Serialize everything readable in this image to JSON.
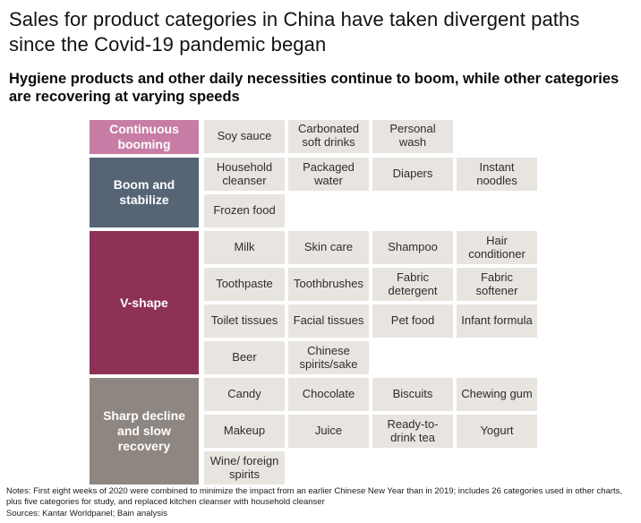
{
  "title": "Sales for product categories in China have taken divergent paths since the Covid-19 pandemic began",
  "subtitle": "Hygiene products and other daily necessities continue to boom, while other categories are recovering at varying speeds",
  "chart_data": {
    "type": "table",
    "title": "Sales for product categories in China have taken divergent paths since the Covid-19 pandemic began",
    "subtitle": "Hygiene products and other daily necessities continue to boom, while other categories are recovering at varying speeds",
    "columns_per_row": 4,
    "groups": [
      {
        "slug": "continuous-booming",
        "label": "Continuous booming",
        "color": "#c77da5",
        "items": [
          "Soy sauce",
          "Carbonated soft drinks",
          "Personal wash"
        ]
      },
      {
        "slug": "boom-and-stabilize",
        "label": "Boom and stabilize",
        "color": "#566476",
        "items": [
          "Household cleanser",
          "Packaged water",
          "Diapers",
          "Instant noodles",
          "Frozen food"
        ]
      },
      {
        "slug": "v-shape",
        "label": "V-shape",
        "color": "#8e3157",
        "items": [
          "Milk",
          "Skin care",
          "Shampoo",
          "Hair conditioner",
          "Toothpaste",
          "Toothbrushes",
          "Fabric detergent",
          "Fabric softener",
          "Toilet tissues",
          "Facial tissues",
          "Pet food",
          "Infant formula",
          "Beer",
          "Chinese spirits/sake"
        ]
      },
      {
        "slug": "sharp-decline-and-slow-recovery",
        "label": "Sharp decline and slow recovery",
        "color": "#8e8680",
        "items": [
          "Candy",
          "Chocolate",
          "Biscuits",
          "Chewing gum",
          "Makeup",
          "Juice",
          "Ready-to-drink tea",
          "Yogurt",
          "Wine/ foreign spirits"
        ]
      }
    ]
  },
  "notes": "Notes: First eight weeks of 2020 were combined to minimize the impact from an earlier Chinese New Year than in 2019; includes 26 categories used in other charts, plus five categories for study, and replaced kitchen cleanser with household cleanser",
  "sources": "Sources: Kantar Worldpanel; Bain analysis",
  "colors": {
    "cell_background": "#e8e5e1",
    "cell_text": "#2d2d2d",
    "header_text": "#ffffff",
    "continuous_booming": "#c77da5",
    "boom_and_stabilize": "#566476",
    "v_shape": "#8e3157",
    "sharp_decline": "#8e8680"
  }
}
